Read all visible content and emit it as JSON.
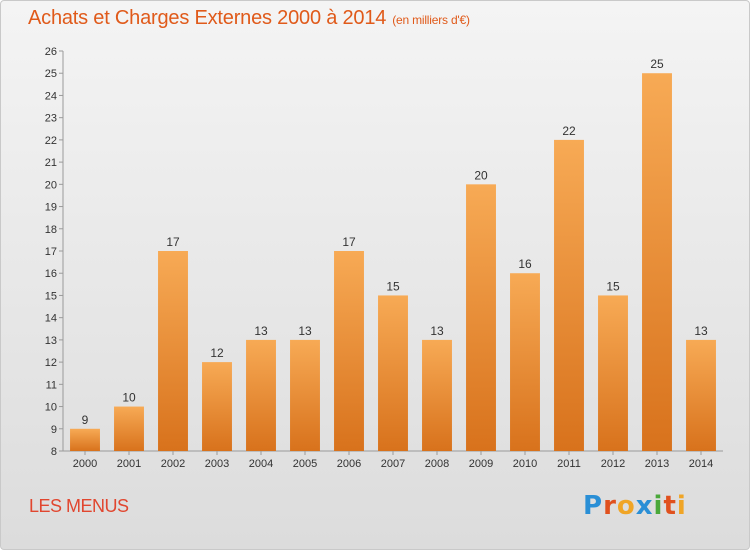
{
  "header": {
    "title": "Achats et Charges Externes 2000 à 2014",
    "unit_note": "(en milliers d'€)"
  },
  "footer": {
    "commune": "LES MENUS",
    "logo_text": "Proxiti"
  },
  "colors": {
    "accent": "#e05a1a",
    "commune": "#e1462f",
    "bar_top": "#f7aa55",
    "bar_bottom": "#d8721c",
    "logo_letters": [
      "#2a8fd6",
      "#e0511e",
      "#f0a526",
      "#2a8fd6",
      "#4aa83a",
      "#e0511e",
      "#f0a526"
    ]
  },
  "chart_data": {
    "type": "bar",
    "categories": [
      "2000",
      "2001",
      "2002",
      "2003",
      "2004",
      "2005",
      "2006",
      "2007",
      "2008",
      "2009",
      "2010",
      "2011",
      "2012",
      "2013",
      "2014"
    ],
    "values": [
      9,
      10,
      17,
      12,
      13,
      13,
      17,
      15,
      13,
      20,
      16,
      22,
      15,
      25,
      13
    ],
    "title": "Achats et Charges Externes 2000 à 2014",
    "ylabel": "",
    "xlabel": "",
    "ylim": [
      8,
      26
    ],
    "yticks": [
      8,
      9,
      10,
      11,
      12,
      13,
      14,
      15,
      16,
      17,
      18,
      19,
      20,
      21,
      22,
      23,
      24,
      25,
      26
    ],
    "grid": false,
    "legend": "none"
  }
}
